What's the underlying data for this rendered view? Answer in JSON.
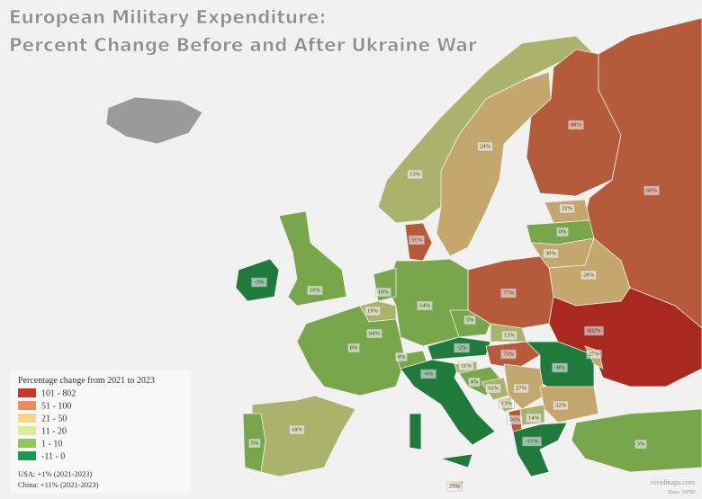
{
  "title": {
    "line1": "European Military Expenditure:",
    "line2": "Percent Change Before and After Ukraine War"
  },
  "legend": {
    "title": "Percentage change from 2021 to 2023",
    "items": [
      {
        "label": "101 - 802",
        "color": "#c8352b"
      },
      {
        "label": "51 - 100",
        "color": "#f08a58"
      },
      {
        "label": "21 - 50",
        "color": "#fbd487"
      },
      {
        "label": "11 - 20",
        "color": "#dcec98"
      },
      {
        "label": "1 - 10",
        "color": "#8fc75a"
      },
      {
        "label": "-11 - 0",
        "color": "#1c9a4e"
      }
    ]
  },
  "labels": [
    "13%",
    "24%",
    "88%",
    "60%",
    "32%",
    "0%",
    "30%",
    "51%",
    "28%",
    "77%",
    "-3%",
    "10%",
    "10%",
    "19%",
    "64%",
    "8%",
    "14%",
    "3%",
    "13%",
    "802%",
    "-2%",
    "8%",
    "73%",
    "27%",
    "-8%",
    "-6%",
    "11%",
    "4%",
    "16%",
    "27%",
    "13%",
    "32%",
    "56%",
    "14%",
    "-11%",
    "3%",
    "18%",
    "5%",
    "25%"
  ],
  "notes": [
    "USA: +1% (2021-2023)",
    "China: +11% (2021-2023)"
  ],
  "credits": {
    "site": "vividmaps.com",
    "source": "Data: SIPRI"
  }
}
